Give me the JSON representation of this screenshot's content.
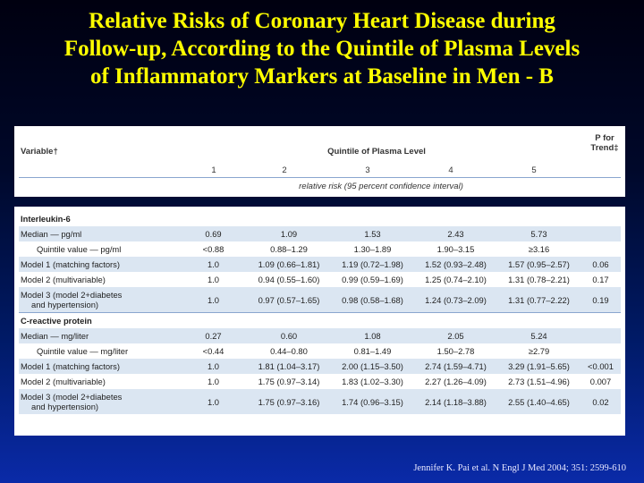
{
  "slide": {
    "title_lines": [
      "Relative Risks of Coronary Heart Disease during",
      "Follow-up, According to the Quintile of Plasma Levels",
      "of Inflammatory Markers at Baseline in Men - B"
    ],
    "citation": "Jennifer K. Pai et al. N Engl J Med 2004; 351: 2599-610",
    "colors": {
      "title": "#ffff00",
      "band": "#dbe6f2",
      "rule": "#8aa6cf"
    }
  },
  "table": {
    "variable_header": "Variable†",
    "quintile_header": "Quintile of Plasma Level",
    "trend_header_line1": "P for",
    "trend_header_line2": "Trend‡",
    "quintile_numbers": [
      "1",
      "2",
      "3",
      "4",
      "5"
    ],
    "sub_caption": "relative risk (95 percent confidence interval)",
    "rows": [
      {
        "label": "Interleukin-6",
        "section": true,
        "shade": false,
        "cells": [
          "",
          "",
          "",
          "",
          "",
          ""
        ]
      },
      {
        "label": "Median — pg/ml",
        "shade": true,
        "cells": [
          "0.69",
          "1.09",
          "1.53",
          "2.43",
          "5.73",
          ""
        ]
      },
      {
        "label": "Quintile value — pg/ml",
        "indent": true,
        "shade": false,
        "cells": [
          "<0.88",
          "0.88–1.29",
          "1.30–1.89",
          "1.90–3.15",
          "≥3.16",
          ""
        ]
      },
      {
        "label": "Model 1 (matching factors)",
        "shade": true,
        "cells": [
          "1.0",
          "1.09 (0.66–1.81)",
          "1.19 (0.72–1.98)",
          "1.52 (0.93–2.48)",
          "1.57 (0.95–2.57)",
          "0.06"
        ]
      },
      {
        "label": "Model 2 (multivariable)",
        "shade": false,
        "cells": [
          "1.0",
          "0.94 (0.55–1.60)",
          "0.99 (0.59–1.69)",
          "1.25 (0.74–2.10)",
          "1.31 (0.78–2.21)",
          "0.17"
        ]
      },
      {
        "label": "Model 3 (model 2+diabetes",
        "label2": "and hypertension)",
        "tall": true,
        "shade": true,
        "cells": [
          "1.0",
          "0.97 (0.57–1.65)",
          "0.98 (0.58–1.68)",
          "1.24 (0.73–2.09)",
          "1.31 (0.77–2.22)",
          "0.19"
        ]
      },
      {
        "label": "C-reactive protein",
        "section": true,
        "shade": false,
        "cells": [
          "",
          "",
          "",
          "",
          "",
          ""
        ]
      },
      {
        "label": "Median — mg/liter",
        "shade": true,
        "cells": [
          "0.27",
          "0.60",
          "1.08",
          "2.05",
          "5.24",
          ""
        ]
      },
      {
        "label": "Quintile value — mg/liter",
        "indent": true,
        "shade": false,
        "cells": [
          "<0.44",
          "0.44–0.80",
          "0.81–1.49",
          "1.50–2.78",
          "≥2.79",
          ""
        ]
      },
      {
        "label": "Model 1 (matching factors)",
        "shade": true,
        "cells": [
          "1.0",
          "1.81 (1.04–3.17)",
          "2.00 (1.15–3.50)",
          "2.74 (1.59–4.71)",
          "3.29 (1.91–5.65)",
          "<0.001"
        ]
      },
      {
        "label": "Model 2 (multivariable)",
        "shade": false,
        "cells": [
          "1.0",
          "1.75 (0.97–3.14)",
          "1.83 (1.02–3.30)",
          "2.27 (1.26–4.09)",
          "2.73 (1.51–4.96)",
          "0.007"
        ]
      },
      {
        "label": "Model 3 (model 2+diabetes",
        "label2": "and hypertension)",
        "tall": true,
        "shade": true,
        "cells": [
          "1.0",
          "1.75 (0.97–3.16)",
          "1.74 (0.96–3.15)",
          "2.14 (1.18–3.88)",
          "2.55 (1.40–4.65)",
          "0.02"
        ]
      }
    ]
  }
}
